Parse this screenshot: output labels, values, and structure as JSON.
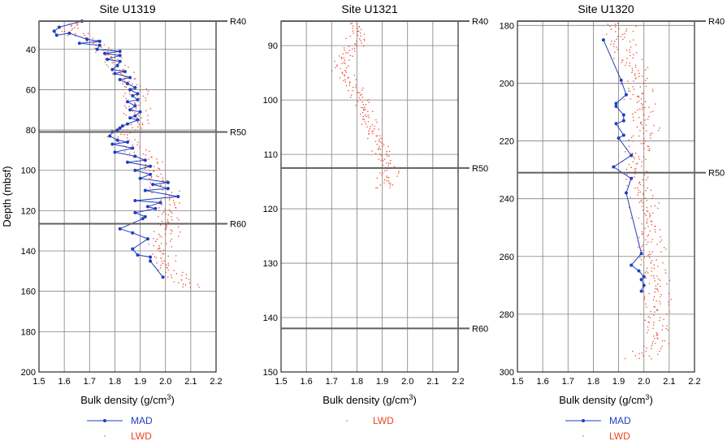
{
  "figure": {
    "y_axis_label": "Depth (mbsf)",
    "x_axis_label_base": "Bulk density (g/cm",
    "x_axis_label_sup": "3",
    "x_axis_label_close": ")",
    "colors": {
      "mad": "#1f3fbf",
      "lwd": "#ee4422",
      "grid": "#808080",
      "reflector": "#606060"
    }
  },
  "chart_data": [
    {
      "type": "scatter",
      "title": "Site U1319",
      "xlim": [
        1.5,
        2.2
      ],
      "xticks": [
        "1.5",
        "1.6",
        "1.7",
        "1.8",
        "1.9",
        "2.0",
        "2.1",
        "2.2"
      ],
      "ylim": [
        26,
        200
      ],
      "yticks": [
        "40",
        "60",
        "80",
        "100",
        "120",
        "140",
        "160",
        "180",
        "200"
      ],
      "ytick_values": [
        40,
        60,
        80,
        100,
        120,
        140,
        160,
        180,
        200
      ],
      "reflectors": [
        {
          "name": "R40",
          "depth": 26
        },
        {
          "name": "R50",
          "depth": 81
        },
        {
          "name": "R60",
          "depth": 126.5
        }
      ],
      "legend": {
        "mad": "MAD",
        "lwd": "LWD"
      },
      "series": [
        {
          "name": "MAD",
          "points": [
            [
              1.67,
              26
            ],
            [
              1.58,
              29
            ],
            [
              1.56,
              31
            ],
            [
              1.57,
              33
            ],
            [
              1.62,
              32
            ],
            [
              1.69,
              35
            ],
            [
              1.74,
              36
            ],
            [
              1.66,
              37
            ],
            [
              1.74,
              38
            ],
            [
              1.73,
              40
            ],
            [
              1.82,
              41
            ],
            [
              1.76,
              42
            ],
            [
              1.82,
              43
            ],
            [
              1.77,
              45
            ],
            [
              1.82,
              46
            ],
            [
              1.81,
              48
            ],
            [
              1.79,
              50
            ],
            [
              1.84,
              51
            ],
            [
              1.8,
              52
            ],
            [
              1.86,
              54
            ],
            [
              1.82,
              55
            ],
            [
              1.85,
              57
            ],
            [
              1.88,
              59
            ],
            [
              1.86,
              60
            ],
            [
              1.89,
              62
            ],
            [
              1.87,
              63
            ],
            [
              1.89,
              65
            ],
            [
              1.85,
              66
            ],
            [
              1.88,
              68
            ],
            [
              1.86,
              70
            ],
            [
              1.9,
              71
            ],
            [
              1.88,
              73
            ],
            [
              1.86,
              74
            ],
            [
              1.89,
              75
            ],
            [
              1.85,
              77
            ],
            [
              1.83,
              78
            ],
            [
              1.82,
              79
            ],
            [
              1.81,
              80
            ],
            [
              1.79,
              81
            ],
            [
              1.78,
              83
            ],
            [
              1.81,
              85
            ],
            [
              1.85,
              86
            ],
            [
              1.79,
              87
            ],
            [
              1.87,
              89
            ],
            [
              1.8,
              91
            ],
            [
              1.88,
              93
            ],
            [
              1.92,
              95
            ],
            [
              1.85,
              96
            ],
            [
              1.94,
              98
            ],
            [
              1.88,
              100
            ],
            [
              1.94,
              102
            ],
            [
              1.9,
              104
            ],
            [
              2.01,
              106
            ],
            [
              1.95,
              107
            ],
            [
              2.01,
              109
            ],
            [
              1.92,
              110
            ],
            [
              2.05,
              113
            ],
            [
              1.88,
              115
            ],
            [
              1.98,
              116
            ],
            [
              1.93,
              118
            ],
            [
              1.96,
              119
            ],
            [
              1.88,
              121
            ],
            [
              1.92,
              123
            ],
            [
              1.91,
              124
            ],
            [
              1.82,
              129
            ],
            [
              1.87,
              131
            ],
            [
              1.93,
              134
            ],
            [
              1.87,
              139
            ],
            [
              1.89,
              142
            ],
            [
              1.94,
              143
            ],
            [
              1.94,
              145
            ],
            [
              1.99,
              153
            ]
          ]
        },
        {
          "name": "LWD",
          "depth_range": [
            26,
            158
          ],
          "trend": [
            [
              26,
              1.66
            ],
            [
              30,
              1.62
            ],
            [
              38,
              1.74
            ],
            [
              50,
              1.82
            ],
            [
              62,
              1.89
            ],
            [
              80,
              1.88
            ],
            [
              84,
              1.82
            ],
            [
              95,
              1.93
            ],
            [
              110,
              2.0
            ],
            [
              126,
              2.02
            ],
            [
              140,
              1.98
            ],
            [
              150,
              2.02
            ],
            [
              158,
              2.1
            ]
          ],
          "spread": 0.035,
          "step": 1.2
        }
      ]
    },
    {
      "type": "scatter",
      "title": "Site U1321",
      "xlim": [
        1.5,
        2.2
      ],
      "xticks": [
        "1.5",
        "1.6",
        "1.7",
        "1.8",
        "1.9",
        "2.0",
        "2.1",
        "2.2"
      ],
      "ylim": [
        85.5,
        150
      ],
      "yticks": [
        "90",
        "100",
        "110",
        "120",
        "130",
        "140",
        "150"
      ],
      "ytick_values": [
        90,
        100,
        110,
        120,
        130,
        140,
        150
      ],
      "reflectors": [
        {
          "name": "R40",
          "depth": 85.5
        },
        {
          "name": "R50",
          "depth": 112.5
        },
        {
          "name": "R60",
          "depth": 142
        }
      ],
      "legend": {
        "lwd": "LWD"
      },
      "series": [
        {
          "name": "LWD",
          "depth_range": [
            86,
            116.5
          ],
          "trend": [
            [
              86,
              1.8
            ],
            [
              90,
              1.79
            ],
            [
              94,
              1.73
            ],
            [
              98,
              1.8
            ],
            [
              104,
              1.85
            ],
            [
              110,
              1.9
            ],
            [
              113,
              1.93
            ],
            [
              116.5,
              1.9
            ]
          ],
          "spread": 0.025,
          "step": 0.45
        }
      ]
    },
    {
      "type": "scatter",
      "title": "Site U1320",
      "xlim": [
        1.5,
        2.2
      ],
      "xticks": [
        "1.5",
        "1.6",
        "1.7",
        "1.8",
        "1.9",
        "2.0",
        "2.1",
        "2.2"
      ],
      "ylim": [
        178.5,
        300
      ],
      "yticks": [
        "180",
        "200",
        "220",
        "240",
        "260",
        "280",
        "300"
      ],
      "ytick_values": [
        180,
        200,
        220,
        240,
        260,
        280,
        300
      ],
      "reflectors": [
        {
          "name": "R40",
          "depth": 178.5
        },
        {
          "name": "R50",
          "depth": 231
        }
      ],
      "legend": {
        "mad": "MAD",
        "lwd": "LWD"
      },
      "series": [
        {
          "name": "MAD",
          "points": [
            [
              1.84,
              185
            ],
            [
              1.91,
              199
            ],
            [
              1.93,
              204
            ],
            [
              1.89,
              207
            ],
            [
              1.89,
              208
            ],
            [
              1.92,
              211
            ],
            [
              1.92,
              213
            ],
            [
              1.89,
              214
            ],
            [
              1.92,
              218
            ],
            [
              1.9,
              219
            ],
            [
              1.95,
              225
            ],
            [
              1.88,
              229
            ],
            [
              1.95,
              233
            ],
            [
              1.93,
              238
            ],
            [
              1.99,
              259
            ],
            [
              1.95,
              263
            ],
            [
              1.98,
              265
            ],
            [
              2.0,
              267
            ],
            [
              1.99,
              268
            ],
            [
              2.0,
              270
            ],
            [
              1.99,
              272
            ]
          ]
        },
        {
          "name": "LWD",
          "depth_range": [
            178.5,
            296
          ],
          "trend": [
            [
              178.5,
              1.9
            ],
            [
              190,
              1.93
            ],
            [
              198,
              1.97
            ],
            [
              215,
              2.0
            ],
            [
              230,
              1.97
            ],
            [
              240,
              2.0
            ],
            [
              260,
              2.03
            ],
            [
              280,
              2.05
            ],
            [
              290,
              2.04
            ],
            [
              296,
              1.98
            ]
          ],
          "spread": 0.04,
          "step": 0.9
        }
      ]
    }
  ]
}
